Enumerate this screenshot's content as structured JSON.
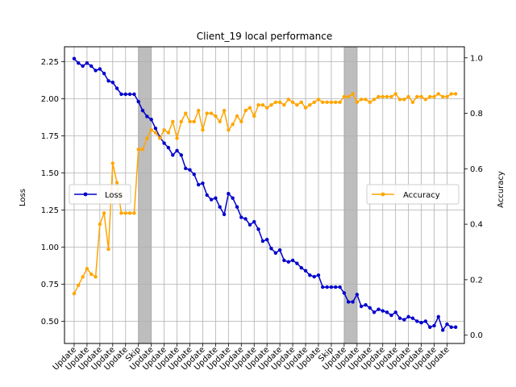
{
  "chart_data": {
    "type": "line",
    "title": "Client_19 local performance",
    "xlabel": "",
    "ylabel_left": "Loss",
    "ylabel_right": "Accuracy",
    "ylim_left": [
      0.35,
      2.35
    ],
    "ylim_right": [
      -0.03,
      1.04
    ],
    "yticks_left": [
      "0.50",
      "0.75",
      "1.00",
      "1.25",
      "1.50",
      "1.75",
      "2.00",
      "2.25"
    ],
    "yticks_right": [
      "0.0",
      "0.2",
      "0.4",
      "0.6",
      "0.8",
      "1.0"
    ],
    "grid": true,
    "x_tick_labels": [
      "Update",
      "Update",
      "Update",
      "Update",
      "Update",
      "Skip",
      "Update",
      "Update",
      "Update",
      "Update",
      "Update",
      "Update",
      "Update",
      "Update",
      "Update",
      "Update",
      "Update",
      "Update",
      "Update",
      "Update",
      "Skip",
      "Update",
      "Update",
      "Update",
      "Update",
      "Update",
      "Update",
      "Update",
      "Update",
      "Update"
    ],
    "skip_regions": [
      [
        5,
        6
      ],
      [
        21,
        22
      ]
    ],
    "colors": {
      "loss": "#0000cc",
      "accuracy": "#ffa500",
      "skip": "#bdbdbd",
      "grid": "#b0b0b0"
    },
    "legend": {
      "loss": {
        "label": "Loss",
        "placement": "center-left"
      },
      "accuracy": {
        "label": "Accuracy",
        "placement": "center-right"
      }
    },
    "series": [
      {
        "name": "Loss",
        "axis": "left",
        "x": [
          0,
          0.33,
          0.67,
          1,
          1.33,
          1.67,
          2,
          2.33,
          2.67,
          3,
          3.33,
          3.67,
          4,
          4.33,
          4.67,
          5,
          5.33,
          5.67,
          6,
          6.33,
          6.67,
          7,
          7.33,
          7.67,
          8,
          8.33,
          8.67,
          9,
          9.33,
          9.67,
          10,
          10.33,
          10.67,
          11,
          11.33,
          11.67,
          12,
          12.33,
          12.67,
          13,
          13.33,
          13.67,
          14,
          14.33,
          14.67,
          15,
          15.33,
          15.67,
          16,
          16.33,
          16.67,
          17,
          17.33,
          17.67,
          18,
          18.33,
          18.67,
          19,
          19.33,
          19.67,
          20,
          20.33,
          20.67,
          21,
          21.33,
          21.67,
          22,
          22.33,
          22.67,
          23,
          23.33,
          23.67,
          24,
          24.33,
          24.67,
          25,
          25.33,
          25.67,
          26,
          26.33,
          26.67,
          27,
          27.33,
          27.67,
          28,
          28.33,
          28.67,
          29,
          29.33,
          29.67
        ],
        "values": [
          2.27,
          2.24,
          2.22,
          2.24,
          2.22,
          2.19,
          2.2,
          2.17,
          2.12,
          2.11,
          2.07,
          2.03,
          2.03,
          2.03,
          2.03,
          1.98,
          1.92,
          1.88,
          1.86,
          1.8,
          1.74,
          1.7,
          1.67,
          1.62,
          1.65,
          1.62,
          1.53,
          1.52,
          1.49,
          1.42,
          1.43,
          1.35,
          1.32,
          1.33,
          1.27,
          1.22,
          1.36,
          1.33,
          1.27,
          1.2,
          1.19,
          1.15,
          1.17,
          1.12,
          1.04,
          1.05,
          0.99,
          0.96,
          0.98,
          0.91,
          0.9,
          0.91,
          0.89,
          0.86,
          0.84,
          0.81,
          0.8,
          0.81,
          0.73,
          0.73,
          0.73,
          0.73,
          0.73,
          0.69,
          0.63,
          0.63,
          0.68,
          0.6,
          0.61,
          0.59,
          0.56,
          0.58,
          0.57,
          0.56,
          0.54,
          0.56,
          0.52,
          0.51,
          0.53,
          0.52,
          0.5,
          0.49,
          0.5,
          0.46,
          0.47,
          0.53,
          0.44,
          0.48,
          0.46,
          0.46
        ]
      },
      {
        "name": "Accuracy",
        "axis": "right",
        "x": [
          0,
          0.33,
          0.67,
          1,
          1.33,
          1.67,
          2,
          2.33,
          2.67,
          3,
          3.33,
          3.67,
          4,
          4.33,
          4.67,
          5,
          5.33,
          5.67,
          6,
          6.33,
          6.67,
          7,
          7.33,
          7.67,
          8,
          8.33,
          8.67,
          9,
          9.33,
          9.67,
          10,
          10.33,
          10.67,
          11,
          11.33,
          11.67,
          12,
          12.33,
          12.67,
          13,
          13.33,
          13.67,
          14,
          14.33,
          14.67,
          15,
          15.33,
          15.67,
          16,
          16.33,
          16.67,
          17,
          17.33,
          17.67,
          18,
          18.33,
          18.67,
          19,
          19.33,
          19.67,
          20,
          20.33,
          20.67,
          21,
          21.33,
          21.67,
          22,
          22.33,
          22.67,
          23,
          23.33,
          23.67,
          24,
          24.33,
          24.67,
          25,
          25.33,
          25.67,
          26,
          26.33,
          26.67,
          27,
          27.33,
          27.67,
          28,
          28.33,
          28.67,
          29,
          29.33,
          29.67
        ],
        "values": [
          0.15,
          0.18,
          0.21,
          0.24,
          0.22,
          0.21,
          0.4,
          0.44,
          0.31,
          0.62,
          0.55,
          0.44,
          0.44,
          0.44,
          0.44,
          0.67,
          0.67,
          0.71,
          0.74,
          0.73,
          0.71,
          0.74,
          0.73,
          0.77,
          0.71,
          0.77,
          0.8,
          0.77,
          0.77,
          0.81,
          0.74,
          0.8,
          0.8,
          0.79,
          0.77,
          0.81,
          0.74,
          0.76,
          0.79,
          0.77,
          0.81,
          0.82,
          0.79,
          0.83,
          0.83,
          0.82,
          0.83,
          0.84,
          0.84,
          0.83,
          0.85,
          0.84,
          0.83,
          0.84,
          0.82,
          0.83,
          0.84,
          0.85,
          0.84,
          0.84,
          0.84,
          0.84,
          0.84,
          0.86,
          0.86,
          0.87,
          0.84,
          0.85,
          0.85,
          0.84,
          0.85,
          0.86,
          0.86,
          0.86,
          0.86,
          0.87,
          0.85,
          0.85,
          0.86,
          0.84,
          0.86,
          0.86,
          0.85,
          0.86,
          0.86,
          0.87,
          0.86,
          0.86,
          0.87,
          0.87
        ]
      }
    ]
  }
}
